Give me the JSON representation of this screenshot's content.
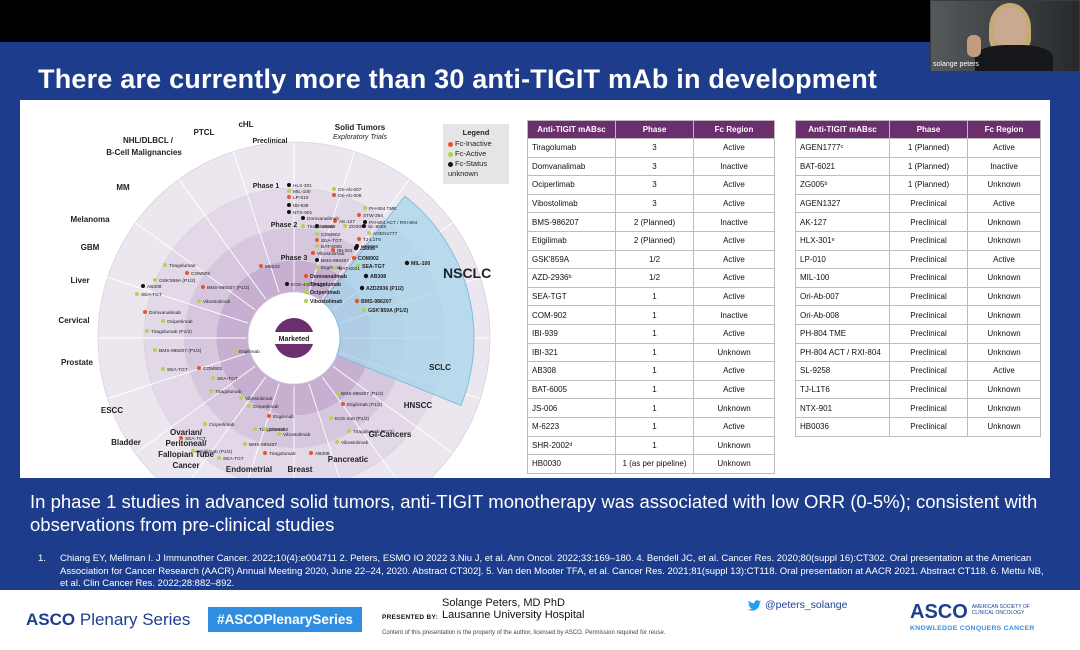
{
  "slide": {
    "title": "There are currently more than 30 anti-TIGIT mAb in development",
    "summary": "In phase 1 studies in advanced solid tumors, anti-TIGIT monotherapy was associated with low ORR (0-5%); consistent with observations from pre-clinical studies",
    "refs_num": "1.",
    "refs": "Chiang EY, Mellman I. J Immunother Cancer. 2022;10(4):e004711 2. Peters, ESMO IO 2022 3.Niu J, et al. Ann Oncol. 2022;33:169–180. 4. Bendell JC, et al. Cancer Res. 2020;80(suppl 16):CT302. Oral presentation at the American Association for Cancer Research (AACR) Annual Meeting 2020, June 22–24, 2020. Abstract CT302]. 5. Van den Mooter TFA, et al. Cancer Res. 2021;81(suppl 13):CT118. Oral presentation at AACR 2021. Abstract CT118. 6. Mettu NB, et al. Clin Cancer Res. 2022;28:882–892."
  },
  "video": {
    "speaker_label": "solange peters"
  },
  "diagram": {
    "phase_labels": [
      "Preclinical",
      "Phase 1",
      "Phase 2",
      "Phase 3",
      "Marketed"
    ],
    "indications": [
      "cHL",
      "PTCL",
      "NHL/DLBCL / B-Cell Malignancies",
      "MM",
      "Melanoma",
      "GBM",
      "Liver",
      "Cervical",
      "Prostate",
      "ESCC",
      "Bladder",
      "Ovarian/ Peritoneal/ Fallopian Tube Cancer",
      "Endometrial",
      "Breast",
      "Pancreatic",
      "GI-Cancers",
      "HNSCC",
      "SCLC",
      "NSCLC",
      "Solid Tumors"
    ],
    "solid_tumors_sub": "Exploratory Trials",
    "nsclc_list": [
      "JS006",
      "COM902",
      "SEA-TGT",
      "AB308",
      "Domvanalimab",
      "Tiragolumab",
      "AZD2936 (P1/2)",
      "Ociperlimab",
      "BMS-986207",
      "Vibostolimab",
      "GSK'859A (P1/2)",
      "MIL-100"
    ],
    "solid_list": [
      "HLX-301",
      "MIL-100",
      "LP-010",
      "NTX-901",
      "Ori-Ab-007",
      "Ori-Ab-008",
      "IBI-939",
      "PH-804 TME",
      "STW-264",
      "PH-804 ACT / RXI-804",
      "AGEN1777",
      "AK-127",
      "SL-9258",
      "ZG005",
      "TJ-L1T6",
      "HB0036",
      "BAT-6005",
      "IBI-321",
      "AB308",
      "COM902",
      "SEA-TGT",
      "Domvanalimab",
      "Tiragolumab",
      "Vibostolimab",
      "BMS-986207",
      "Etigilimab",
      "M6223",
      "EOS-448 (P1/2)",
      "BAT-6021"
    ],
    "scatter_labels": [
      "Tiragolumab",
      "COM902",
      "GSK'859A (P1/2)",
      "BMS-986207 (P1/2)",
      "Vibostolimab",
      "AB308",
      "SEA-TGT",
      "Domvanalimab",
      "Ociperlimab",
      "Tiragolumab (P1/2)",
      "Etigilimab",
      "BMS-986207 (P1/2)",
      "SEA-TGT",
      "COM902",
      "SEA-TGT",
      "Tiragolumab",
      "Vibostolimab",
      "Ociperlimab",
      "Etigilimab",
      "Tiragolumab",
      "Vibostolimab",
      "Ociperlimab",
      "SEA-TGT",
      "BMS-986207",
      "Tiragolumab",
      "Etigilimab (P1/2)",
      "SEA-TGT",
      "COM902",
      "AB308",
      "Vibostolimab",
      "Tiragolumab (P1/2)",
      "EOS-448 (P1/2)",
      "Etigilimab (P1/2)",
      "BMS-986207 (P1/2)"
    ],
    "legend": {
      "title": "Legend",
      "items": [
        {
          "label": "Fc-Inactive",
          "color": "#e2582c"
        },
        {
          "label": "Fc-Active",
          "color": "#b7d14e"
        },
        {
          "label": "Fc-Status unknown",
          "color": "#111111"
        }
      ]
    }
  },
  "table1": {
    "headers": [
      "Anti-TIGIT mABsc",
      "Phase",
      "Fc Region"
    ],
    "rows": [
      [
        "Tiragolumab",
        "3",
        "Active"
      ],
      [
        "Domvanalimab",
        "3",
        "Inactive"
      ],
      [
        "Ociperlimab",
        "3",
        "Active"
      ],
      [
        "Vibostolimab",
        "3",
        "Active"
      ],
      [
        "BMS-986207",
        "2 (Planned)",
        "Inactive"
      ],
      [
        "Etigilimab",
        "2 (Planned)",
        "Active"
      ],
      [
        "GSK'859A",
        "1/2",
        "Active"
      ],
      [
        "AZD-2936ᵇ",
        "1/2",
        "Active"
      ],
      [
        "SEA-TGT",
        "1",
        "Active"
      ],
      [
        "COM-902",
        "1",
        "Inactive"
      ],
      [
        "IBI-939",
        "1",
        "Active"
      ],
      [
        "IBI-321",
        "1",
        "Unknown"
      ],
      [
        "AB308",
        "1",
        "Active"
      ],
      [
        "BAT-6005",
        "1",
        "Active"
      ],
      [
        "JS-006",
        "1",
        "Unknown"
      ],
      [
        "M-6223",
        "1",
        "Active"
      ],
      [
        "SHR-2002ᵈ",
        "1",
        "Unknown"
      ],
      [
        "HB0030",
        "1 (as per pipeline)",
        "Unknown"
      ]
    ]
  },
  "table2": {
    "headers": [
      "Anti-TIGIT mABsc",
      "Phase",
      "Fc Region"
    ],
    "rows": [
      [
        "AGEN1777ᶜ",
        "1 (Planned)",
        "Active"
      ],
      [
        "BAT-6021",
        "1 (Planned)",
        "Inactive"
      ],
      [
        "ZG005ᵇ",
        "1 (Planned)",
        "Unknown"
      ],
      [
        "AGEN1327",
        "Preclinical",
        "Active"
      ],
      [
        "AK-127",
        "Preclinical",
        "Unknown"
      ],
      [
        "HLX-301ᵉ",
        "Preclinical",
        "Unknown"
      ],
      [
        "LP-010",
        "Preclinical",
        "Active"
      ],
      [
        "MIL-100",
        "Preclinical",
        "Unknown"
      ],
      [
        "Ori-Ab-007",
        "Preclinical",
        "Unknown"
      ],
      [
        "Ori-Ab-008",
        "Preclinical",
        "Unknown"
      ],
      [
        "PH-804 TME",
        "Preclinical",
        "Unknown"
      ],
      [
        "PH-804 ACT / RXI-804",
        "Preclinical",
        "Unknown"
      ],
      [
        "SL-9258",
        "Preclinical",
        "Active"
      ],
      [
        "TJ-L1T6",
        "Preclinical",
        "Unknown"
      ],
      [
        "NTX-901",
        "Preclinical",
        "Unknown"
      ],
      [
        "HB0036",
        "Preclinical",
        "Unknown"
      ]
    ]
  },
  "footer": {
    "asco_logo": "ASCO",
    "asco_series": "Plenary Series",
    "hashtag": "#ASCOPlenarySeries",
    "presenter_name": "Solange Peters, MD PhD",
    "presented_by": "PRESENTED BY:",
    "presenter_institution": "Lausanne University Hospital",
    "copyright": "Content of this presentation is the property of the author, licensed by ASCO. Permission required for reuse.",
    "twitter_handle": "@peters_solange",
    "asco_right": "ASCO",
    "asco_right_small": "AMERICAN SOCIETY OF CLINICAL ONCOLOGY",
    "asco_tagline": "KNOWLEDGE CONQUERS CANCER"
  }
}
